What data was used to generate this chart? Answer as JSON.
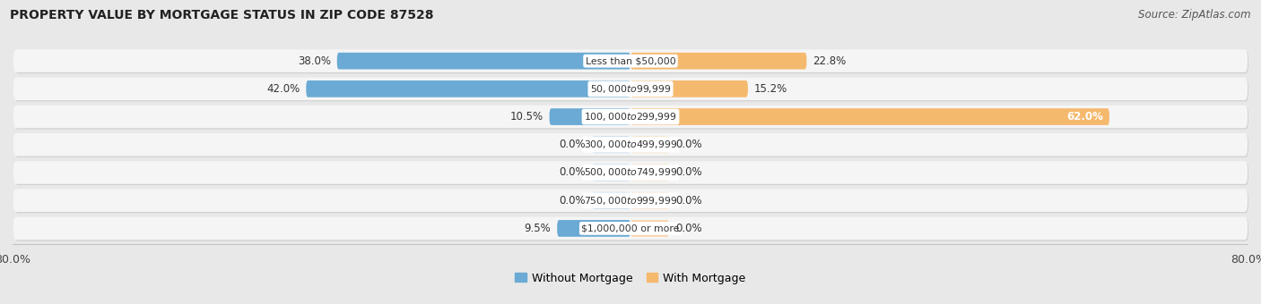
{
  "title": "PROPERTY VALUE BY MORTGAGE STATUS IN ZIP CODE 87528",
  "source": "Source: ZipAtlas.com",
  "categories": [
    "Less than $50,000",
    "$50,000 to $99,999",
    "$100,000 to $299,999",
    "$300,000 to $499,999",
    "$500,000 to $749,999",
    "$750,000 to $999,999",
    "$1,000,000 or more"
  ],
  "without_mortgage": [
    38.0,
    42.0,
    10.5,
    0.0,
    0.0,
    0.0,
    9.5
  ],
  "with_mortgage": [
    22.8,
    15.2,
    62.0,
    0.0,
    0.0,
    0.0,
    0.0
  ],
  "color_without": "#6aaad4",
  "color_with": "#f5b96e",
  "color_without_stub": "#aacce8",
  "color_with_stub": "#f9d4ae",
  "bg_color": "#e8e8e8",
  "row_bg_color": "#f5f5f5",
  "stub_val": 5.0,
  "x_min": -80.0,
  "x_max": 80.0,
  "legend_without": "Without Mortgage",
  "legend_with": "With Mortgage"
}
